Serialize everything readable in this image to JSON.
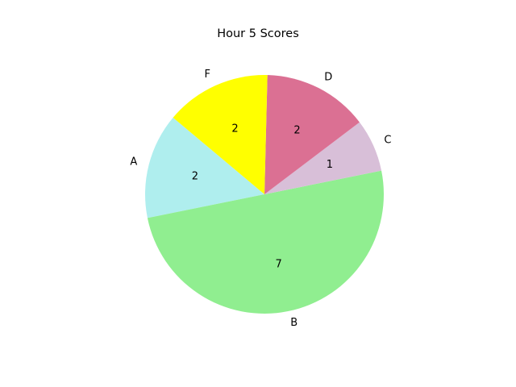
{
  "chart_data": {
    "type": "pie",
    "title": "Hour 5 Scores",
    "categories": [
      "A",
      "B",
      "C",
      "D",
      "F"
    ],
    "values": [
      2,
      7,
      1,
      2,
      2
    ],
    "colors": [
      "#afeeee",
      "#90ee90",
      "#d8bfd8",
      "#db7093",
      "#ffff00"
    ],
    "start_angle_deg": 140,
    "direction": "counterclockwise"
  }
}
